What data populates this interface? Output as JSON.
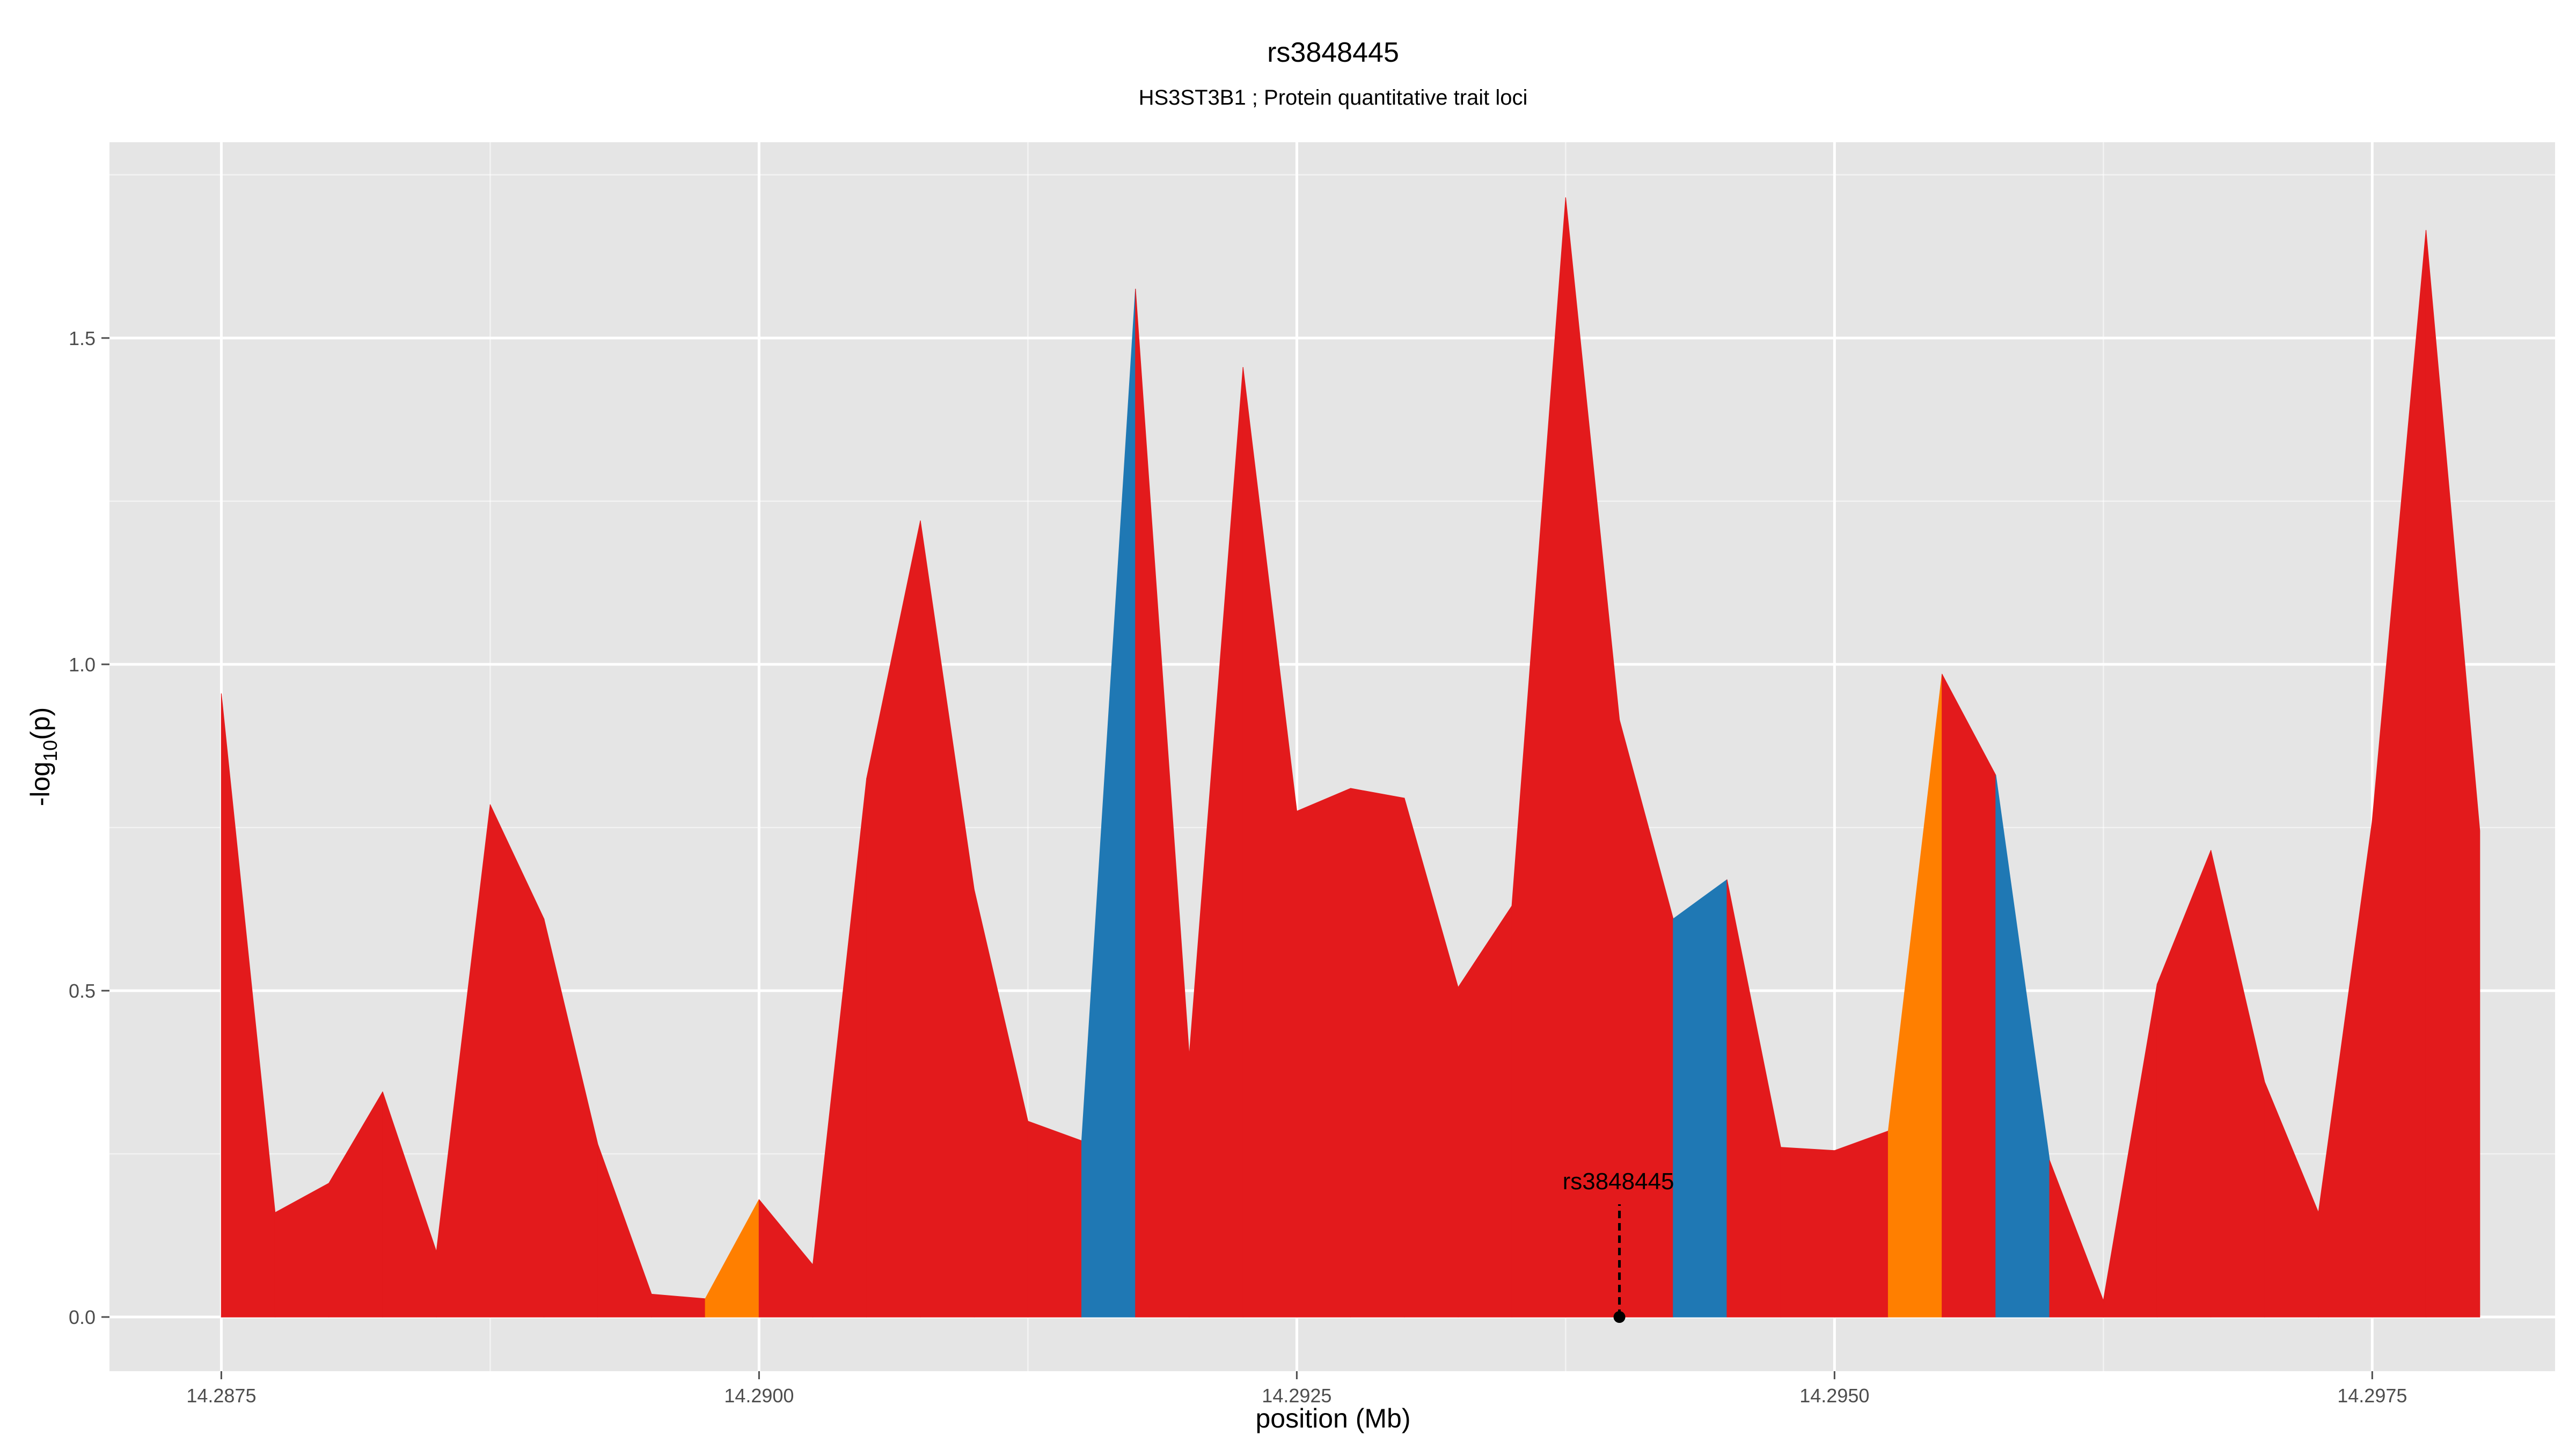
{
  "chart_data": {
    "type": "area",
    "title": "rs3848445",
    "subtitle": "HS3ST3B1 ; Protein quantitative trait loci",
    "xlabel": "position (Mb)",
    "ylabel": "-log10(p)",
    "xlim": [
      14.28698,
      14.29835
    ],
    "ylim": [
      -0.083,
      1.8
    ],
    "x_ticks": [
      14.2875,
      14.29,
      14.2925,
      14.295,
      14.2975
    ],
    "x_tick_labels": [
      "14.2875",
      "14.2900",
      "14.2925",
      "14.2950",
      "14.2975"
    ],
    "y_ticks": [
      0.0,
      0.5,
      1.0,
      1.5
    ],
    "y_tick_labels": [
      "0.0",
      "0.5",
      "1.0",
      "1.5"
    ],
    "grid": true,
    "colors": {
      "red": "#e31a1c",
      "blue": "#1f78b4",
      "orange": "#ff7f00",
      "panel": "#e5e5e5",
      "grid": "#ffffff"
    },
    "points": [
      [
        14.2875,
        0.955
      ],
      [
        14.28775,
        0.16
      ],
      [
        14.288,
        0.205
      ],
      [
        14.28825,
        0.345
      ],
      [
        14.2885,
        0.1
      ],
      [
        14.28875,
        0.785
      ],
      [
        14.289,
        0.61
      ],
      [
        14.28925,
        0.265
      ],
      [
        14.2895,
        0.035
      ],
      [
        14.28975,
        0.028
      ],
      [
        14.29,
        0.18
      ],
      [
        14.29025,
        0.08
      ],
      [
        14.2905,
        0.825
      ],
      [
        14.29075,
        1.22
      ],
      [
        14.291,
        0.655
      ],
      [
        14.29125,
        0.3
      ],
      [
        14.2915,
        0.27
      ],
      [
        14.29175,
        1.575
      ],
      [
        14.292,
        0.4
      ],
      [
        14.29225,
        1.455
      ],
      [
        14.2925,
        0.775
      ],
      [
        14.29275,
        0.81
      ],
      [
        14.293,
        0.795
      ],
      [
        14.29325,
        0.505
      ],
      [
        14.2935,
        0.63
      ],
      [
        14.29375,
        1.715
      ],
      [
        14.294,
        0.915
      ],
      [
        14.29425,
        0.61
      ],
      [
        14.2945,
        0.67
      ],
      [
        14.29475,
        0.26
      ],
      [
        14.295,
        0.255
      ],
      [
        14.29525,
        0.285
      ],
      [
        14.2955,
        0.985
      ],
      [
        14.29575,
        0.83
      ],
      [
        14.296,
        0.24
      ],
      [
        14.29625,
        0.025
      ],
      [
        14.2965,
        0.51
      ],
      [
        14.29675,
        0.715
      ],
      [
        14.297,
        0.36
      ],
      [
        14.29725,
        0.16
      ],
      [
        14.2975,
        0.76
      ],
      [
        14.29775,
        1.665
      ],
      [
        14.298,
        0.745
      ]
    ],
    "segment_colors": [
      "red",
      "red",
      "red",
      "red",
      "red",
      "red",
      "red",
      "red",
      "red",
      "orange",
      "red",
      "red",
      "red",
      "red",
      "red",
      "red",
      "blue",
      "red",
      "red",
      "red",
      "red",
      "red",
      "red",
      "red",
      "red",
      "red",
      "red",
      "blue",
      "red",
      "red",
      "red",
      "orange",
      "red",
      "blue",
      "red",
      "red",
      "red",
      "red",
      "red",
      "red",
      "red",
      "red"
    ],
    "annotations": [
      {
        "label": "rs3848445",
        "x": 14.294,
        "y": 0.0
      }
    ]
  }
}
